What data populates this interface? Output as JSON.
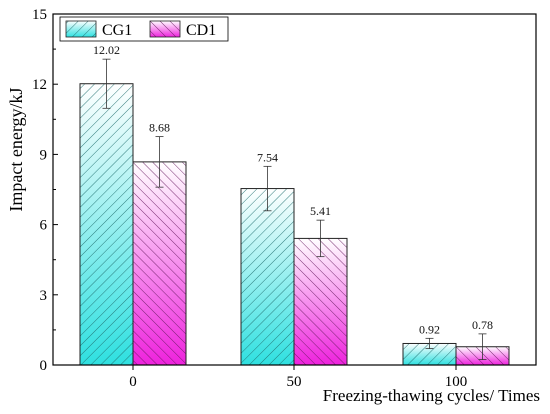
{
  "chart_data": {
    "type": "bar",
    "categories": [
      "0",
      "50",
      "100"
    ],
    "series": [
      {
        "name": "CG1",
        "values": [
          12.02,
          7.54,
          0.92
        ],
        "errors": [
          1.05,
          0.95,
          0.22
        ],
        "color": "#40E5E3"
      },
      {
        "name": "CD1",
        "values": [
          8.68,
          5.41,
          0.78
        ],
        "errors": [
          1.08,
          0.78,
          0.55
        ],
        "color": "#F23FE3"
      }
    ],
    "data_labels": [
      [
        "12.02",
        "7.54",
        "0.92"
      ],
      [
        "8.68",
        "5.41",
        "0.78"
      ]
    ],
    "xlabel": "Freezing-thawing cycles/ Times",
    "ylabel": "Impact energy/kJ",
    "ylim": [
      0,
      15
    ],
    "yticks": [
      "0",
      "3",
      "6",
      "9",
      "12",
      "15"
    ],
    "legend_position": "top-left",
    "grid": false
  }
}
